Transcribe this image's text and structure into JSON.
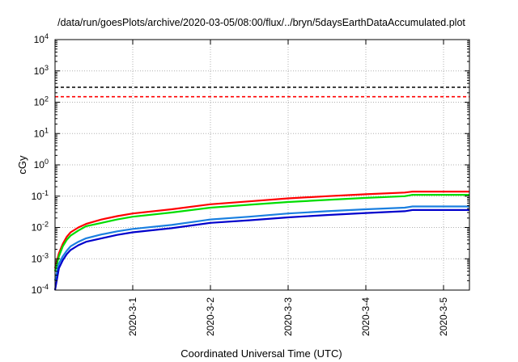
{
  "chart_data": {
    "type": "line",
    "title": "/data/run/goesPlots/archive/2020-03-05/08:00/flux/../bryn/5daysEarthDataAccumulated.plot",
    "xlabel": "Coordinated Universal Time (UTC)",
    "ylabel": "cGy",
    "y_scale": "log",
    "ylim": [
      0.0001,
      10000
    ],
    "y_ticks": [
      {
        "value": 0.0001,
        "base": "10",
        "exp": "-4"
      },
      {
        "value": 0.001,
        "base": "10",
        "exp": "-3"
      },
      {
        "value": 0.01,
        "base": "10",
        "exp": "-2"
      },
      {
        "value": 0.1,
        "base": "10",
        "exp": "-1"
      },
      {
        "value": 1,
        "base": "10",
        "exp": "0"
      },
      {
        "value": 10,
        "base": "10",
        "exp": "1"
      },
      {
        "value": 100,
        "base": "10",
        "exp": "2"
      },
      {
        "value": 1000,
        "base": "10",
        "exp": "3"
      },
      {
        "value": 10000,
        "base": "10",
        "exp": "4"
      }
    ],
    "xlim": [
      "2020-02-29 00:00",
      "2020-03-05 08:00"
    ],
    "x_ticks": [
      {
        "x": "2020-03-01 00:00",
        "label": "2020-3-1"
      },
      {
        "x": "2020-03-02 00:00",
        "label": "2020-3-2"
      },
      {
        "x": "2020-03-03 00:00",
        "label": "2020-3-3"
      },
      {
        "x": "2020-03-04 00:00",
        "label": "2020-3-4"
      },
      {
        "x": "2020-03-05 00:00",
        "label": "2020-3-5"
      }
    ],
    "grid": true,
    "series": [
      {
        "color": "#ff0000",
        "points": [
          [
            "2020-02-29 00:00",
            0.0005
          ],
          [
            "2020-02-29 01:12",
            0.0015
          ],
          [
            "2020-02-29 02:24",
            0.003
          ],
          [
            "2020-02-29 03:36",
            0.005
          ],
          [
            "2020-02-29 04:48",
            0.007
          ],
          [
            "2020-02-29 07:12",
            0.01
          ],
          [
            "2020-02-29 09:36",
            0.013
          ],
          [
            "2020-02-29 14:24",
            0.018
          ],
          [
            "2020-02-29 19:12",
            0.023
          ],
          [
            "2020-03-01 00:00",
            0.028
          ],
          [
            "2020-03-01 12:00",
            0.038
          ],
          [
            "2020-03-02 00:00",
            0.055
          ],
          [
            "2020-03-02 12:00",
            0.068
          ],
          [
            "2020-03-03 00:00",
            0.085
          ],
          [
            "2020-03-03 12:00",
            0.1
          ],
          [
            "2020-03-04 00:00",
            0.115
          ],
          [
            "2020-03-04 12:00",
            0.13
          ],
          [
            "2020-03-04 14:24",
            0.14
          ],
          [
            "2020-03-05 08:00",
            0.14
          ]
        ]
      },
      {
        "color": "#00dd00",
        "points": [
          [
            "2020-02-29 00:00",
            0.0004
          ],
          [
            "2020-02-29 01:12",
            0.0012
          ],
          [
            "2020-02-29 02:24",
            0.0025
          ],
          [
            "2020-02-29 03:36",
            0.004
          ],
          [
            "2020-02-29 04:48",
            0.0055
          ],
          [
            "2020-02-29 07:12",
            0.008
          ],
          [
            "2020-02-29 09:36",
            0.011
          ],
          [
            "2020-02-29 14:24",
            0.014
          ],
          [
            "2020-02-29 19:12",
            0.018
          ],
          [
            "2020-03-01 00:00",
            0.022
          ],
          [
            "2020-03-01 12:00",
            0.03
          ],
          [
            "2020-03-02 00:00",
            0.043
          ],
          [
            "2020-03-02 12:00",
            0.053
          ],
          [
            "2020-03-03 00:00",
            0.065
          ],
          [
            "2020-03-03 12:00",
            0.076
          ],
          [
            "2020-03-04 00:00",
            0.088
          ],
          [
            "2020-03-04 12:00",
            0.1
          ],
          [
            "2020-03-04 14:24",
            0.11
          ],
          [
            "2020-03-05 08:00",
            0.11
          ]
        ]
      },
      {
        "color": "#1a7fe0",
        "points": [
          [
            "2020-02-29 00:00",
            0.0002
          ],
          [
            "2020-02-29 01:12",
            0.0007
          ],
          [
            "2020-02-29 02:24",
            0.0012
          ],
          [
            "2020-02-29 03:36",
            0.0018
          ],
          [
            "2020-02-29 04:48",
            0.0025
          ],
          [
            "2020-02-29 07:12",
            0.0035
          ],
          [
            "2020-02-29 09:36",
            0.0045
          ],
          [
            "2020-02-29 14:24",
            0.006
          ],
          [
            "2020-02-29 19:12",
            0.0075
          ],
          [
            "2020-03-01 00:00",
            0.009
          ],
          [
            "2020-03-01 12:00",
            0.012
          ],
          [
            "2020-03-02 00:00",
            0.018
          ],
          [
            "2020-03-02 12:00",
            0.022
          ],
          [
            "2020-03-03 00:00",
            0.028
          ],
          [
            "2020-03-03 12:00",
            0.033
          ],
          [
            "2020-03-04 00:00",
            0.038
          ],
          [
            "2020-03-04 12:00",
            0.043
          ],
          [
            "2020-03-04 14:24",
            0.047
          ],
          [
            "2020-03-05 08:00",
            0.047
          ]
        ]
      },
      {
        "color": "#0000cc",
        "points": [
          [
            "2020-02-29 00:00",
            0.0001
          ],
          [
            "2020-02-29 01:12",
            0.0005
          ],
          [
            "2020-02-29 02:24",
            0.0009
          ],
          [
            "2020-02-29 03:36",
            0.0014
          ],
          [
            "2020-02-29 04:48",
            0.0019
          ],
          [
            "2020-02-29 07:12",
            0.0027
          ],
          [
            "2020-02-29 09:36",
            0.0035
          ],
          [
            "2020-02-29 14:24",
            0.0045
          ],
          [
            "2020-02-29 19:12",
            0.0058
          ],
          [
            "2020-03-01 00:00",
            0.007
          ],
          [
            "2020-03-01 12:00",
            0.0095
          ],
          [
            "2020-03-02 00:00",
            0.014
          ],
          [
            "2020-03-02 12:00",
            0.017
          ],
          [
            "2020-03-03 00:00",
            0.021
          ],
          [
            "2020-03-03 12:00",
            0.025
          ],
          [
            "2020-03-04 00:00",
            0.029
          ],
          [
            "2020-03-04 12:00",
            0.033
          ],
          [
            "2020-03-04 14:24",
            0.036
          ],
          [
            "2020-03-05 08:00",
            0.036
          ]
        ]
      }
    ],
    "thresholds": [
      {
        "value": 300,
        "color": "#000000",
        "style": "dashed"
      },
      {
        "value": 150,
        "color": "#ff0000",
        "style": "dashed"
      }
    ]
  }
}
